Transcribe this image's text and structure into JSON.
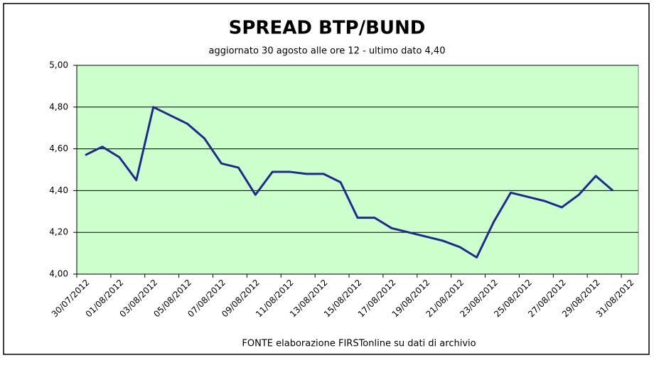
{
  "chart_data": {
    "type": "line",
    "title": "SPREAD  BTP/BUND",
    "subtitle": "aggiornato 30 agosto alle ore 12  -  ultimo dato 4,40",
    "footer": "FONTE elaborazione FIRSTonline su dati di archivio",
    "categories": [
      "30/07/2012",
      null,
      "01/08/2012",
      null,
      "03/08/2012",
      null,
      "05/08/2012",
      null,
      "07/08/2012",
      null,
      "09/08/2012",
      null,
      "11/08/2012",
      null,
      "13/08/2012",
      null,
      "15/08/2012",
      null,
      "17/08/2012",
      null,
      "19/08/2012",
      null,
      "21/08/2012",
      null,
      "23/08/2012",
      null,
      "25/08/2012",
      null,
      "27/08/2012",
      null,
      "29/08/2012",
      null,
      "31/08/2012"
    ],
    "values": [
      4.57,
      4.61,
      4.56,
      4.45,
      4.8,
      4.76,
      4.72,
      4.65,
      4.53,
      4.51,
      4.38,
      4.49,
      4.49,
      4.48,
      4.48,
      4.44,
      4.27,
      4.27,
      4.22,
      4.2,
      4.18,
      4.16,
      4.13,
      4.08,
      4.25,
      4.39,
      4.37,
      4.35,
      4.32,
      4.38,
      4.47,
      4.4,
      null
    ],
    "color": "#1f2b8c",
    "plot_background": "#ccffcc",
    "ylim": [
      4.0,
      5.0
    ],
    "yticks": [
      {
        "value": 4.0,
        "label": "4,00"
      },
      {
        "value": 4.2,
        "label": "4,20"
      },
      {
        "value": 4.4,
        "label": "4,40"
      },
      {
        "value": 4.6,
        "label": "4,60"
      },
      {
        "value": 4.8,
        "label": "4,80"
      },
      {
        "value": 5.0,
        "label": "5,00"
      }
    ],
    "grid": true
  }
}
